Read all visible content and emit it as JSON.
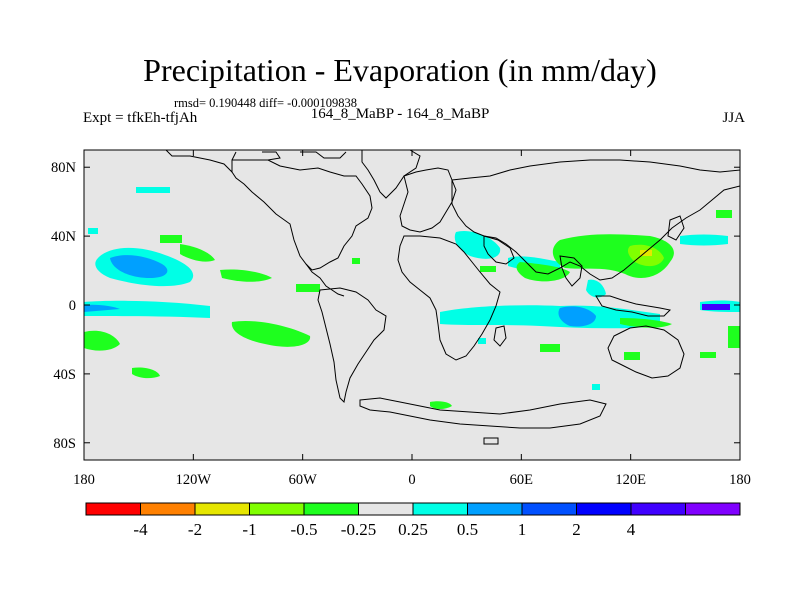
{
  "title": "Precipitation - Evaporation (in mm/day)",
  "stats": "rmsd= 0.190448 diff= -0.000109838",
  "expt": "Expt = tfkEh-tfjAh",
  "case": "164_8_MaBP - 164_8_MaBP",
  "season": "JJA",
  "map": {
    "projection": "cylindrical-equidistant",
    "lon_range": [
      -180,
      180
    ],
    "lat_range": [
      -90,
      90
    ],
    "land_color": "#e6e6e6",
    "coastline_color": "#000000",
    "lon_ticks": [
      {
        "value": -180,
        "label": "180"
      },
      {
        "value": -120,
        "label": "120W"
      },
      {
        "value": -60,
        "label": "60W"
      },
      {
        "value": 0,
        "label": "0"
      },
      {
        "value": 60,
        "label": "60E"
      },
      {
        "value": 120,
        "label": "120E"
      },
      {
        "value": 180,
        "label": "180"
      }
    ],
    "lat_ticks": [
      {
        "value": 80,
        "label": "80N"
      },
      {
        "value": 40,
        "label": "40N"
      },
      {
        "value": 0,
        "label": "0"
      },
      {
        "value": -40,
        "label": "40S"
      },
      {
        "value": -80,
        "label": "80S"
      }
    ]
  },
  "colorbar": {
    "colors": [
      "#ff0000",
      "#ff8000",
      "#e6e600",
      "#80ff00",
      "#1eff1e",
      "#e6e6e6",
      "#00ffe6",
      "#00a0ff",
      "#0050ff",
      "#0000ff",
      "#4000ff",
      "#8000ff"
    ],
    "labels": [
      "-4",
      "-2",
      "-1",
      "-0.5",
      "-0.25",
      "0.25",
      "0.5",
      "1",
      "2",
      "4"
    ]
  }
}
